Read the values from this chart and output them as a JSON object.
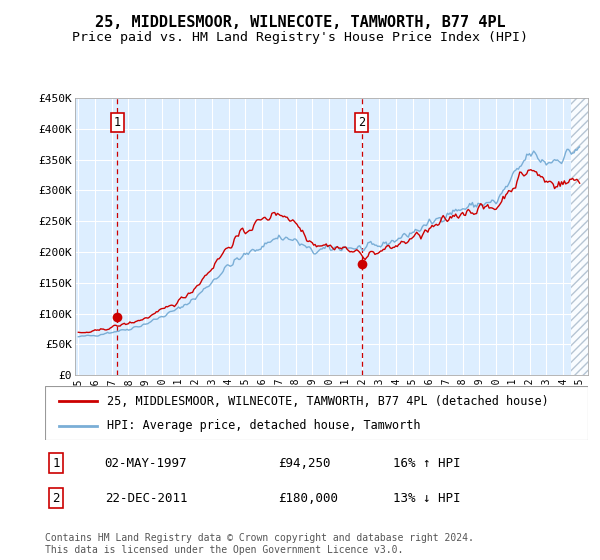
{
  "title": "25, MIDDLESMOOR, WILNECOTE, TAMWORTH, B77 4PL",
  "subtitle": "Price paid vs. HM Land Registry's House Price Index (HPI)",
  "ylim": [
    0,
    450000
  ],
  "yticks": [
    0,
    50000,
    100000,
    150000,
    200000,
    250000,
    300000,
    350000,
    400000,
    450000
  ],
  "ytick_labels": [
    "£0",
    "£50K",
    "£100K",
    "£150K",
    "£200K",
    "£250K",
    "£300K",
    "£350K",
    "£400K",
    "£450K"
  ],
  "xlim_start": 1994.8,
  "xlim_end": 2025.5,
  "transaction1_date": 1997.33,
  "transaction1_price": 94250,
  "transaction2_date": 2011.97,
  "transaction2_price": 180000,
  "legend_line1": "25, MIDDLESMOOR, WILNECOTE, TAMWORTH, B77 4PL (detached house)",
  "legend_line2": "HPI: Average price, detached house, Tamworth",
  "table_row1": [
    "1",
    "02-MAY-1997",
    "£94,250",
    "16% ↑ HPI"
  ],
  "table_row2": [
    "2",
    "22-DEC-2011",
    "£180,000",
    "13% ↓ HPI"
  ],
  "footnote1": "Contains HM Land Registry data © Crown copyright and database right 2024.",
  "footnote2": "This data is licensed under the Open Government Licence v3.0.",
  "red_color": "#cc0000",
  "blue_color": "#7aaed6",
  "bg_color": "#ddeeff",
  "grid_color": "#ffffff",
  "title_fontsize": 11,
  "subtitle_fontsize": 9.5,
  "tick_fontsize": 8,
  "legend_fontsize": 8.5,
  "table_fontsize": 9,
  "footnote_fontsize": 7
}
